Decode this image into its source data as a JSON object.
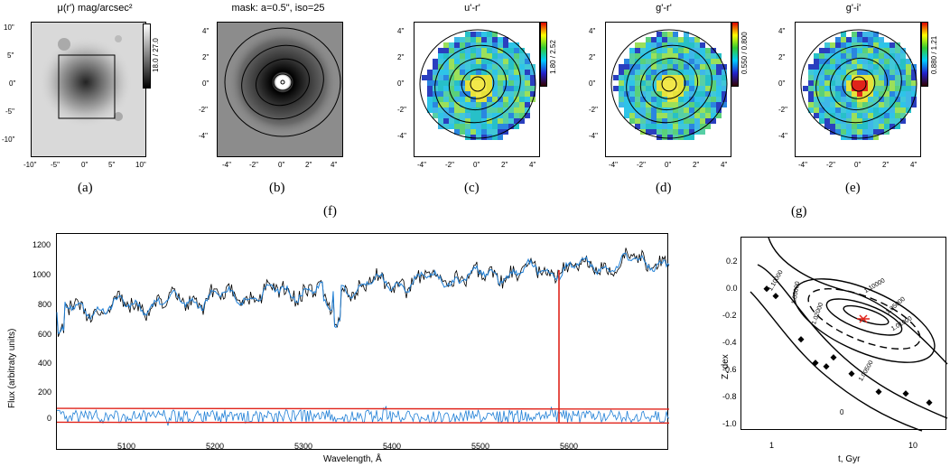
{
  "top_panels": [
    {
      "key": "a",
      "title": "μ(r') mag/arcsec²",
      "cbar_label": "18.0 / 27.0",
      "letter": "(a)",
      "xticks": [
        "-10\"",
        "-5\"",
        "0\"",
        "5\"",
        "10\""
      ],
      "yticks": [
        "10\"",
        "5\"",
        "0\"",
        "-5\"",
        "-10\""
      ]
    },
    {
      "key": "b",
      "title": "mask: a=0.5\", iso=25",
      "letter": "(b)",
      "xticks": [
        "-4\"",
        "-2\"",
        "0\"",
        "2\"",
        "4\""
      ],
      "yticks": [
        "4\"",
        "2\"",
        "0\"",
        "-2\"",
        "-4\""
      ]
    },
    {
      "key": "c",
      "title": "u'-r'",
      "cbar_label": "1.80 / 2.52",
      "letter": "(c)",
      "xticks": [
        "-4\"",
        "-2\"",
        "0\"",
        "2\"",
        "4\""
      ],
      "yticks": [
        "4\"",
        "2\"",
        "0\"",
        "-2\"",
        "-4\""
      ]
    },
    {
      "key": "d",
      "title": "g'-r'",
      "cbar_label": "0.550 / 0.800",
      "letter": "(d)",
      "xticks": [
        "-4\"",
        "-2\"",
        "0\"",
        "2\"",
        "4\""
      ],
      "yticks": [
        "4\"",
        "2\"",
        "0\"",
        "-2\"",
        "-4\""
      ]
    },
    {
      "key": "e",
      "title": "g'-i'",
      "cbar_label": "0.880 / 1.21",
      "letter": "(e)",
      "xticks": [
        "-4\"",
        "-2\"",
        "0\"",
        "2\"",
        "4\""
      ],
      "yticks": [
        "4\"",
        "2\"",
        "0\"",
        "-2\"",
        "-4\""
      ]
    }
  ],
  "letters": {
    "f": "(f)",
    "g": "(g)"
  },
  "spectrum": {
    "ylabel": "Flux (arbitraty units)",
    "xlabel": "Wavelength, Å",
    "xticks": [
      "5100",
      "5200",
      "5300",
      "5400",
      "5500",
      "5600"
    ],
    "yticks": [
      "1200",
      "1000",
      "800",
      "600",
      "400",
      "200",
      "0"
    ]
  },
  "contour": {
    "ylabel": "Z, dex",
    "xlabel": "t, Gyr",
    "xticks": [
      "1",
      "10"
    ],
    "yticks": [
      "0.2",
      "0.0",
      "-0.2",
      "-0.4",
      "-0.6",
      "-0.8",
      "-1.0"
    ],
    "levels": [
      "1.10000",
      "1.05000",
      "1.02000",
      "1.01000",
      "1.00500",
      "1.10000",
      "1.05000",
      "1.02000",
      "0"
    ]
  },
  "colors": {
    "spectrum_obs": "#000000",
    "spectrum_model": "#1f7fd6",
    "residual": "#1f7fd6",
    "residual_band": "#e0241b",
    "best_fit": "#e0241b"
  }
}
